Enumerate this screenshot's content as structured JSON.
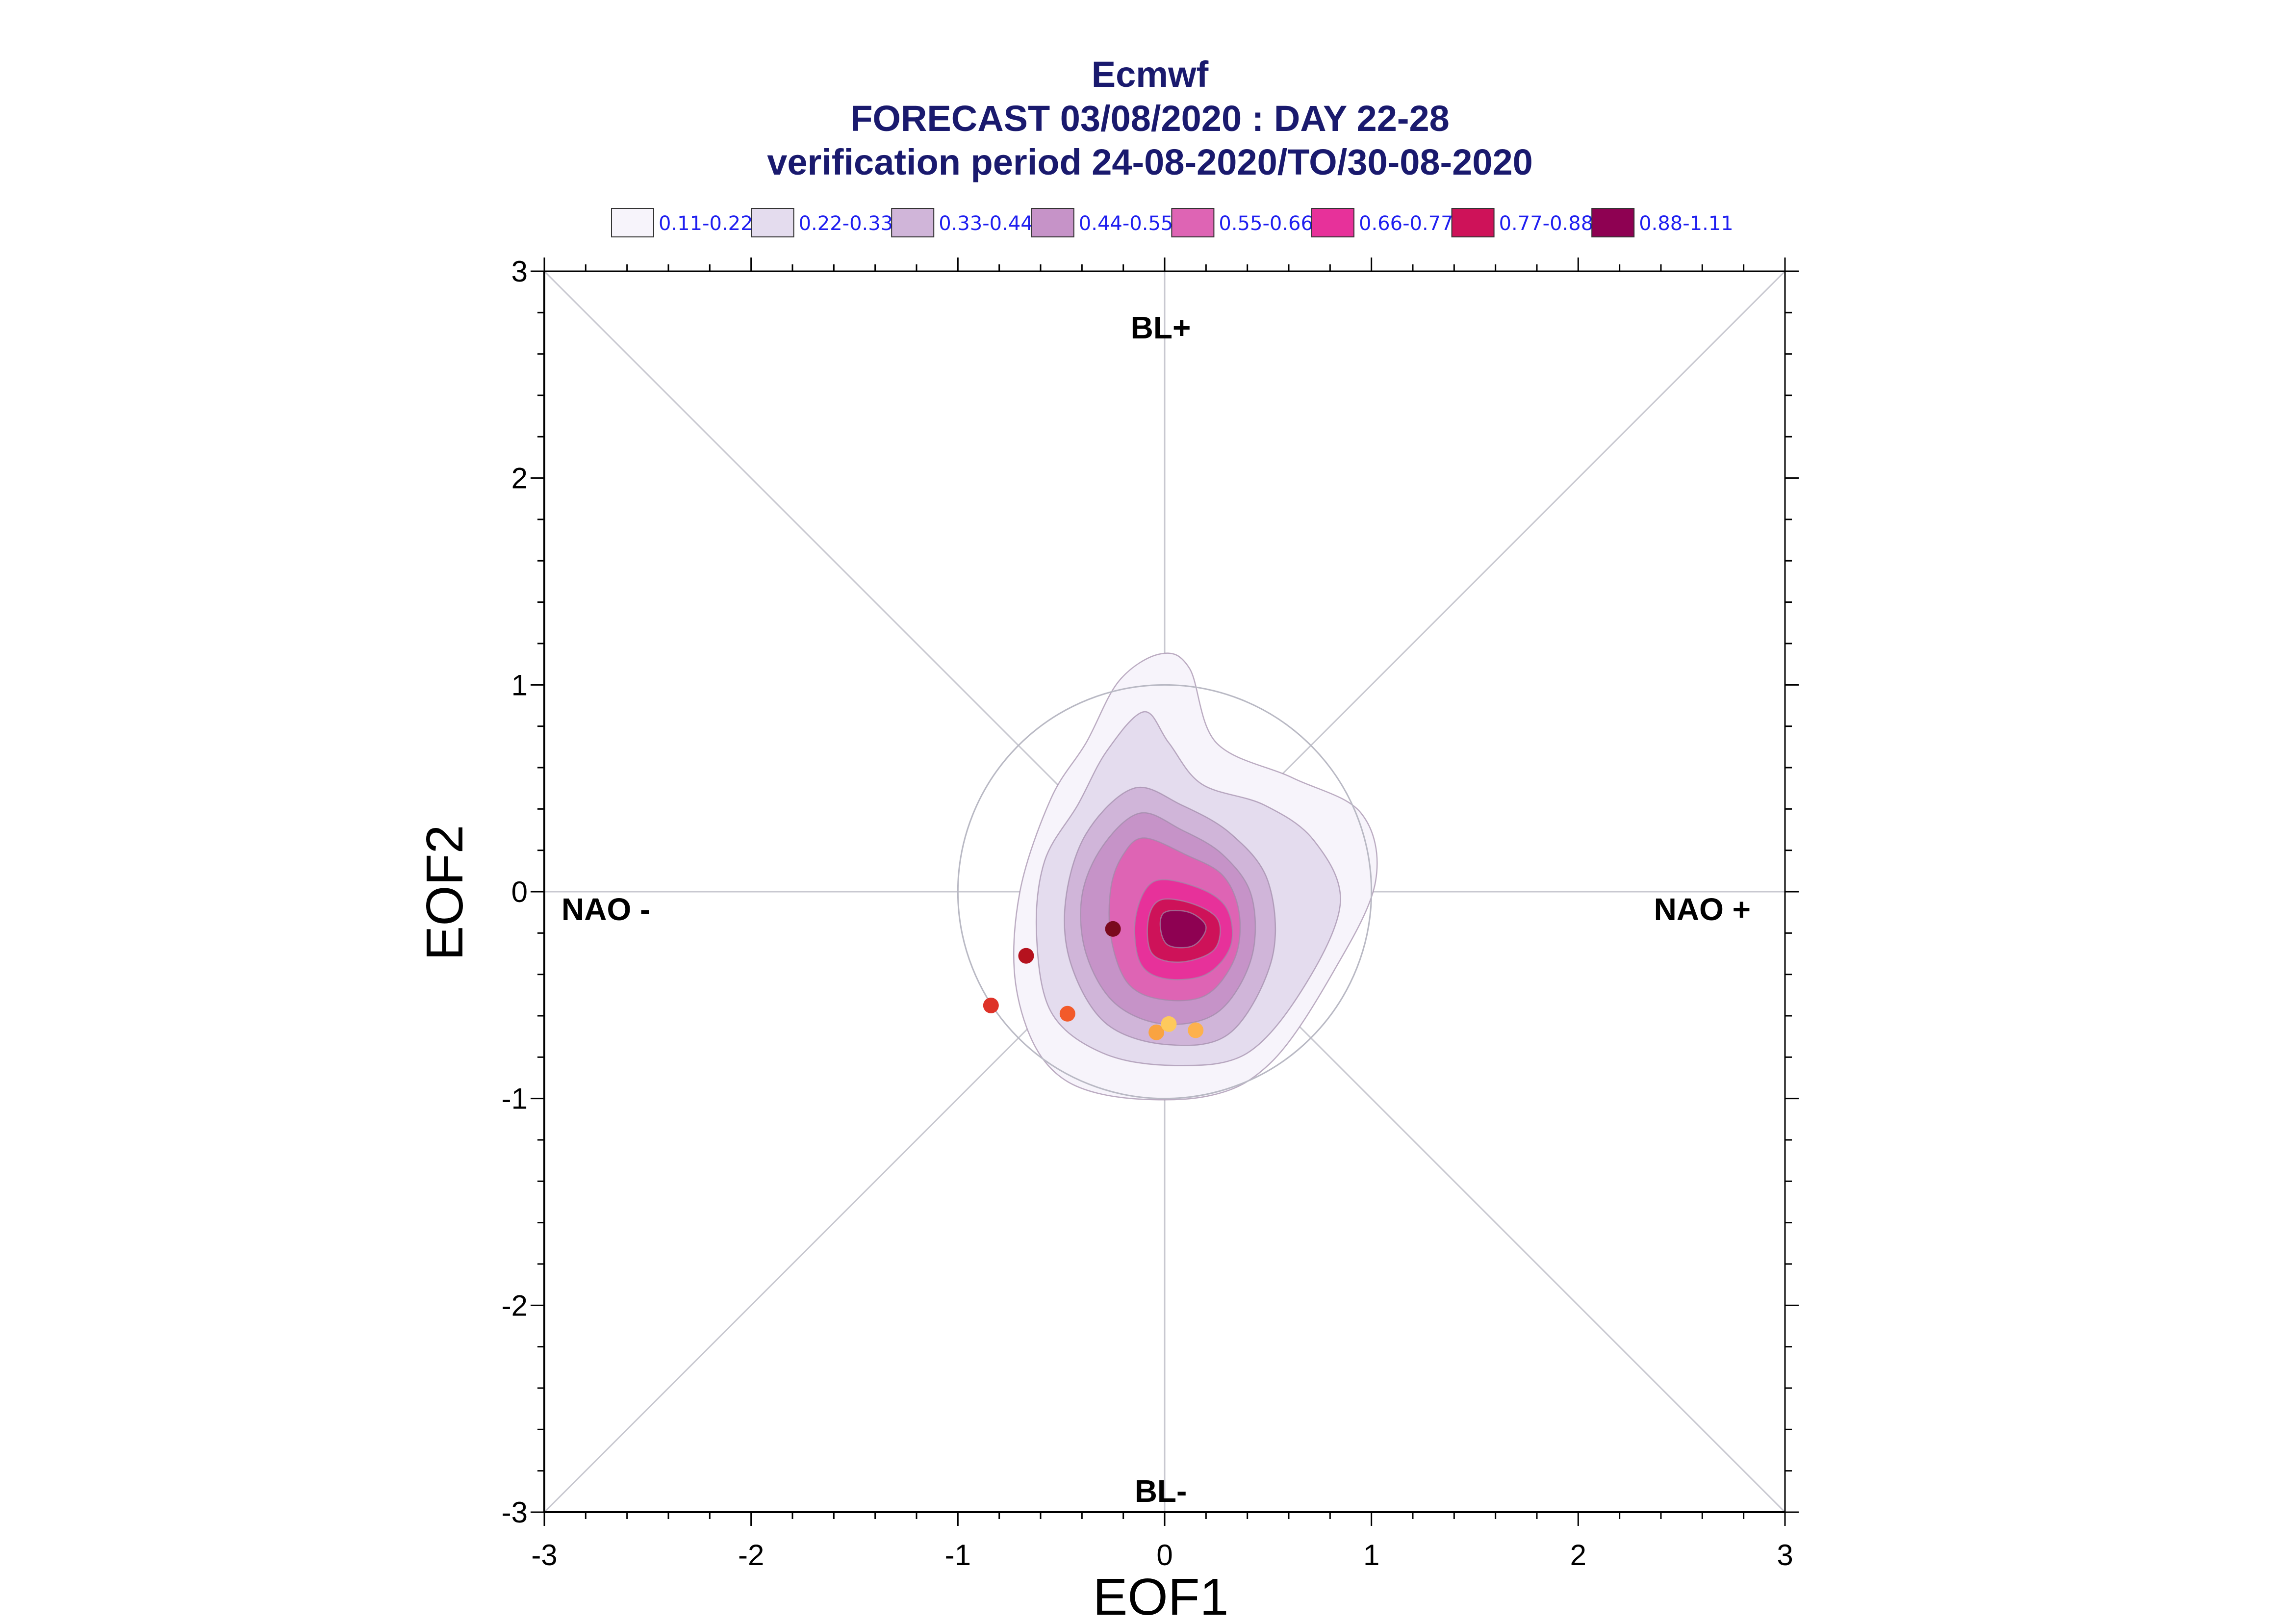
{
  "chart_data": {
    "type": "contour-scatter",
    "title": "Ecmwf",
    "subtitle_lines": [
      "FORECAST 03/08/2020 : DAY 22-28",
      "verification period 24-08-2020/TO/30-08-2020"
    ],
    "xlabel": "EOF1",
    "ylabel": "EOF2",
    "xlim": [
      -3,
      3
    ],
    "ylim": [
      -3,
      3
    ],
    "x_ticks": [
      "-3",
      "-2",
      "-1",
      "0",
      "1",
      "2",
      "3"
    ],
    "y_ticks": [
      "3",
      "2",
      "1",
      "0",
      "-1",
      "-2",
      "-3"
    ],
    "annotations": {
      "top": "BL+",
      "bottom": "BL-",
      "left": "NAO -",
      "right": "NAO +"
    },
    "reference_circle_radius": 1.0,
    "legend": [
      {
        "label": "0.11-0.22",
        "color": "#f7f4fb"
      },
      {
        "label": "0.22-0.33",
        "color": "#e4dcee"
      },
      {
        "label": "0.33-0.44",
        "color": "#d0b5d9"
      },
      {
        "label": "0.44-0.55",
        "color": "#c693c8"
      },
      {
        "label": "0.55-0.66",
        "color": "#de64b4"
      },
      {
        "label": "0.66-0.77",
        "color": "#e7319a"
      },
      {
        "label": "0.77-0.88",
        "color": "#ce1259"
      },
      {
        "label": "0.88-1.11",
        "color": "#8e0152"
      }
    ],
    "density_contours": [
      {
        "level": "0.11-0.22",
        "points": [
          [
            -0.02,
            1.15
          ],
          [
            0.12,
            1.08
          ],
          [
            0.25,
            0.72
          ],
          [
            0.62,
            0.55
          ],
          [
            0.95,
            0.38
          ],
          [
            1.02,
            0.05
          ],
          [
            0.82,
            -0.38
          ],
          [
            0.52,
            -0.82
          ],
          [
            0.2,
            -0.99
          ],
          [
            -0.3,
            -0.98
          ],
          [
            -0.58,
            -0.82
          ],
          [
            -0.72,
            -0.45
          ],
          [
            -0.7,
            0.0
          ],
          [
            -0.55,
            0.45
          ],
          [
            -0.38,
            0.72
          ],
          [
            -0.22,
            1.02
          ]
        ]
      },
      {
        "level": "0.22-0.33",
        "points": [
          [
            -0.1,
            0.87
          ],
          [
            0.02,
            0.72
          ],
          [
            0.18,
            0.52
          ],
          [
            0.48,
            0.42
          ],
          [
            0.72,
            0.25
          ],
          [
            0.85,
            -0.05
          ],
          [
            0.68,
            -0.45
          ],
          [
            0.4,
            -0.78
          ],
          [
            0.05,
            -0.84
          ],
          [
            -0.3,
            -0.78
          ],
          [
            -0.55,
            -0.58
          ],
          [
            -0.62,
            -0.2
          ],
          [
            -0.58,
            0.15
          ],
          [
            -0.42,
            0.42
          ],
          [
            -0.28,
            0.68
          ]
        ]
      },
      {
        "level": "0.33-0.44",
        "points": [
          [
            -0.15,
            0.5
          ],
          [
            0.08,
            0.42
          ],
          [
            0.32,
            0.28
          ],
          [
            0.5,
            0.05
          ],
          [
            0.52,
            -0.32
          ],
          [
            0.32,
            -0.68
          ],
          [
            0.02,
            -0.74
          ],
          [
            -0.28,
            -0.64
          ],
          [
            -0.45,
            -0.36
          ],
          [
            -0.48,
            -0.05
          ],
          [
            -0.38,
            0.28
          ]
        ]
      },
      {
        "level": "0.44-0.55",
        "points": [
          [
            -0.12,
            0.38
          ],
          [
            0.08,
            0.3
          ],
          [
            0.28,
            0.18
          ],
          [
            0.42,
            -0.02
          ],
          [
            0.42,
            -0.32
          ],
          [
            0.26,
            -0.58
          ],
          [
            0.0,
            -0.64
          ],
          [
            -0.24,
            -0.54
          ],
          [
            -0.38,
            -0.3
          ],
          [
            -0.4,
            -0.02
          ],
          [
            -0.3,
            0.22
          ]
        ]
      },
      {
        "level": "0.55-0.66",
        "points": [
          [
            -0.1,
            0.26
          ],
          [
            0.1,
            0.18
          ],
          [
            0.28,
            0.08
          ],
          [
            0.36,
            -0.1
          ],
          [
            0.34,
            -0.32
          ],
          [
            0.2,
            -0.5
          ],
          [
            -0.02,
            -0.52
          ],
          [
            -0.18,
            -0.44
          ],
          [
            -0.26,
            -0.22
          ],
          [
            -0.26,
            0.02
          ],
          [
            -0.2,
            0.18
          ]
        ]
      },
      {
        "level": "0.66-0.77",
        "points": [
          [
            -0.05,
            0.05
          ],
          [
            0.16,
            0.02
          ],
          [
            0.3,
            -0.08
          ],
          [
            0.32,
            -0.26
          ],
          [
            0.2,
            -0.4
          ],
          [
            0.0,
            -0.42
          ],
          [
            -0.12,
            -0.34
          ],
          [
            -0.14,
            -0.12
          ]
        ]
      },
      {
        "level": "0.77-0.88",
        "points": [
          [
            -0.02,
            -0.04
          ],
          [
            0.14,
            -0.06
          ],
          [
            0.26,
            -0.14
          ],
          [
            0.24,
            -0.28
          ],
          [
            0.08,
            -0.34
          ],
          [
            -0.06,
            -0.3
          ],
          [
            -0.08,
            -0.14
          ]
        ]
      },
      {
        "level": "0.88-1.11",
        "points": [
          [
            0.0,
            -0.1
          ],
          [
            0.12,
            -0.1
          ],
          [
            0.2,
            -0.17
          ],
          [
            0.14,
            -0.26
          ],
          [
            0.02,
            -0.26
          ],
          [
            -0.02,
            -0.18
          ]
        ]
      }
    ],
    "scatter_points": [
      {
        "x": -0.25,
        "y": -0.18,
        "color": "#7a0a1e"
      },
      {
        "x": -0.67,
        "y": -0.31,
        "color": "#b5121e"
      },
      {
        "x": -0.84,
        "y": -0.55,
        "color": "#de3228"
      },
      {
        "x": -0.47,
        "y": -0.59,
        "color": "#f25a2a"
      },
      {
        "x": -0.04,
        "y": -0.68,
        "color": "#f9a341"
      },
      {
        "x": 0.02,
        "y": -0.64,
        "color": "#fec95c"
      },
      {
        "x": 0.15,
        "y": -0.67,
        "color": "#fdb14d"
      }
    ]
  }
}
